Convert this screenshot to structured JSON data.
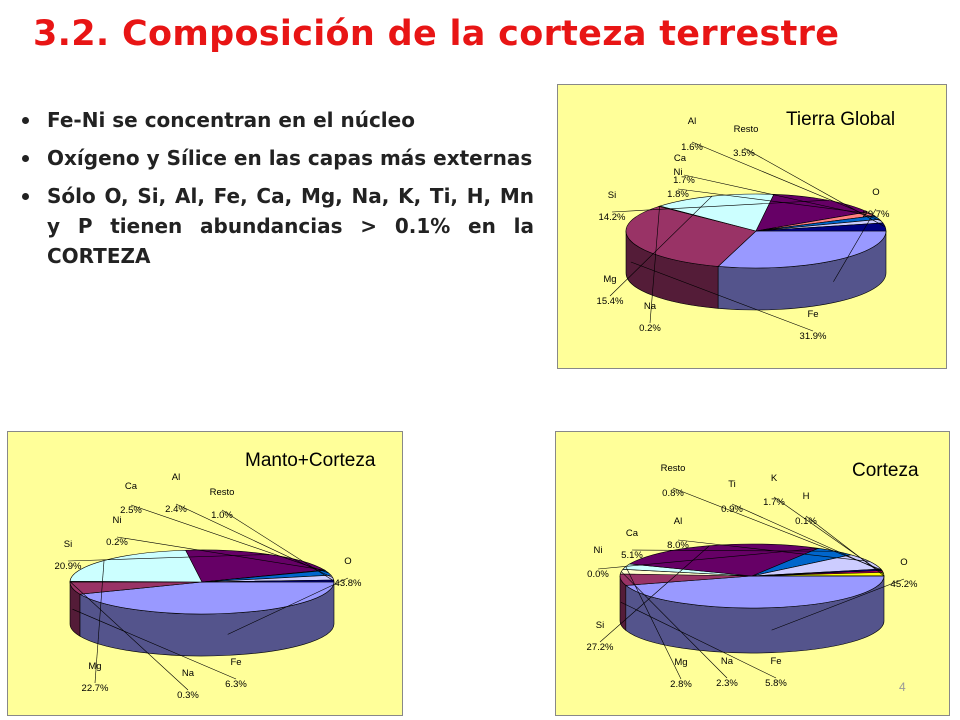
{
  "slide": {
    "title": "3.2. Composición de la corteza terrestre",
    "bullets": [
      "Fe-Ni se concentran en el núcleo",
      "Oxígeno y Sílice en las capas más externas",
      "Sólo O, Si, Al, Fe, Ca, Mg, Na, K, Ti, H, Mn y P tienen abundancias > 0.1% en la CORTEZA"
    ],
    "page_number": "4"
  },
  "chart_data": [
    {
      "type": "pie",
      "title": "Tierra Global",
      "slices": [
        {
          "label": "O",
          "value": 29.7,
          "text": "29.7%",
          "color": "#9999ff"
        },
        {
          "label": "Fe",
          "value": 31.9,
          "text": "31.9%",
          "color": "#993366"
        },
        {
          "label": "Na",
          "value": 0.2,
          "text": "0.2%",
          "color": "#ffffcc"
        },
        {
          "label": "Mg",
          "value": 15.4,
          "text": "15.4%",
          "color": "#ccffff"
        },
        {
          "label": "Si",
          "value": 14.2,
          "text": "14.2%",
          "color": "#660066"
        },
        {
          "label": "Ni",
          "value": 1.8,
          "text": "1.8%",
          "color": "#ff8080"
        },
        {
          "label": "Ca",
          "value": 1.7,
          "text": "1.7%",
          "color": "#0066cc"
        },
        {
          "label": "Al",
          "value": 1.6,
          "text": "1.6%",
          "color": "#ccccff"
        },
        {
          "label": "Resto",
          "value": 3.5,
          "text": "3.5%",
          "color": "#000080"
        }
      ]
    },
    {
      "type": "pie",
      "title": "Manto+Corteza",
      "slices": [
        {
          "label": "O",
          "value": 43.8,
          "text": "43.8%",
          "color": "#9999ff"
        },
        {
          "label": "Fe",
          "value": 6.3,
          "text": "6.3%",
          "color": "#993366"
        },
        {
          "label": "Na",
          "value": 0.3,
          "text": "0.3%",
          "color": "#ffffcc"
        },
        {
          "label": "Mg",
          "value": 22.7,
          "text": "22.7%",
          "color": "#ccffff"
        },
        {
          "label": "Si",
          "value": 20.9,
          "text": "20.9%",
          "color": "#660066"
        },
        {
          "label": "Ni",
          "value": 0.2,
          "text": "0.2%",
          "color": "#ff8080"
        },
        {
          "label": "Ca",
          "value": 2.5,
          "text": "2.5%",
          "color": "#0066cc"
        },
        {
          "label": "Al",
          "value": 2.4,
          "text": "2.4%",
          "color": "#ccccff"
        },
        {
          "label": "Resto",
          "value": 1.0,
          "text": "1.0%",
          "color": "#000080"
        }
      ]
    },
    {
      "type": "pie",
      "title": "Corteza",
      "slices": [
        {
          "label": "O",
          "value": 45.2,
          "text": "45.2%",
          "color": "#9999ff"
        },
        {
          "label": "Fe",
          "value": 5.8,
          "text": "5.8%",
          "color": "#993366"
        },
        {
          "label": "Na",
          "value": 2.3,
          "text": "2.3%",
          "color": "#ffffcc"
        },
        {
          "label": "Mg",
          "value": 2.8,
          "text": "2.8%",
          "color": "#ccffff"
        },
        {
          "label": "Si",
          "value": 27.2,
          "text": "27.2%",
          "color": "#660066"
        },
        {
          "label": "Ni",
          "value": 0.0,
          "text": "0.0%",
          "color": "#ff8080"
        },
        {
          "label": "Ca",
          "value": 5.1,
          "text": "5.1%",
          "color": "#0066cc"
        },
        {
          "label": "Al",
          "value": 8.0,
          "text": "8.0%",
          "color": "#ccccff"
        },
        {
          "label": "Resto",
          "value": 0.8,
          "text": "0.8%",
          "color": "#000080"
        },
        {
          "label": "Ti",
          "value": 0.9,
          "text": "0.9%",
          "color": "#cc0066"
        },
        {
          "label": "K",
          "value": 1.7,
          "text": "1.7%",
          "color": "#ffff00"
        },
        {
          "label": "H",
          "value": 0.1,
          "text": "0.1%",
          "color": "#00ffff"
        }
      ]
    }
  ]
}
